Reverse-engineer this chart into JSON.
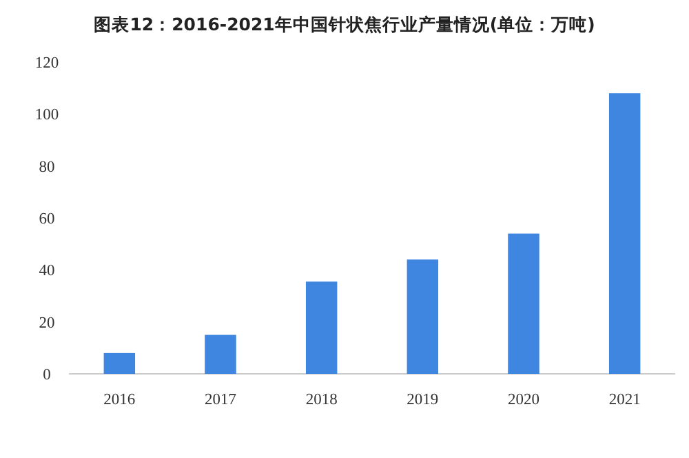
{
  "chart_data": {
    "type": "bar",
    "title": "图表12：2016-2021年中国针状焦行业产量情况(单位：万吨)",
    "categories": [
      "2016",
      "2017",
      "2018",
      "2019",
      "2020",
      "2021"
    ],
    "values": [
      8,
      15,
      35.5,
      44,
      54,
      108
    ],
    "color": "#3f86e0",
    "ylim": [
      0,
      120
    ],
    "yticks": [
      0,
      20,
      40,
      60,
      80,
      100,
      120
    ],
    "grid": false
  }
}
